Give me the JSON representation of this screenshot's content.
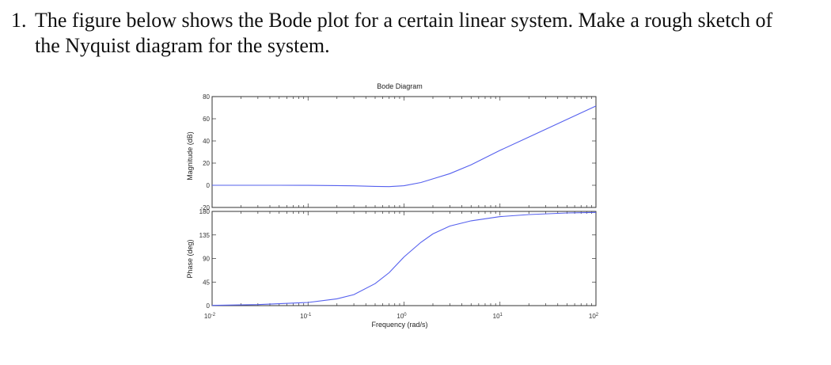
{
  "problem": {
    "number": "1.",
    "line1": "The figure below shows the Bode plot for a certain linear system. Make a rough sketch of",
    "line2": "the Nyquist diagram for the system."
  },
  "chart_data": [
    {
      "type": "line",
      "title": "Bode Diagram",
      "ylabel": "Magnitude (dB)",
      "xscale": "log",
      "xlim": [
        0.01,
        100
      ],
      "ylim": [
        -20,
        80
      ],
      "ytick_labels": [
        "-20",
        "0",
        "20",
        "40",
        "60",
        "80"
      ],
      "color": "#5560ee",
      "series": [
        {
          "x": [
            0.01,
            0.02,
            0.05,
            0.1,
            0.2,
            0.3,
            0.5,
            0.7,
            1,
            1.5,
            2,
            3,
            5,
            10,
            20,
            50,
            100
          ],
          "y": [
            0,
            0,
            0,
            -0.1,
            -0.3,
            -0.5,
            -1,
            -1.2,
            -0.4,
            2.5,
            5.8,
            10.5,
            18.5,
            31.5,
            43.5,
            59.5,
            71.5
          ]
        }
      ]
    },
    {
      "type": "line",
      "ylabel": "Phase (deg)",
      "xlabel": "Frequency  (rad/s)",
      "xscale": "log",
      "xlim": [
        0.01,
        100
      ],
      "ylim": [
        0,
        180
      ],
      "ytick_labels": [
        "0",
        "45",
        "90",
        "135",
        "180"
      ],
      "xtick_labels": [
        "10-2",
        "10-1",
        "100",
        "101",
        "102"
      ],
      "color": "#5560ee",
      "series": [
        {
          "x": [
            0.01,
            0.03,
            0.1,
            0.2,
            0.3,
            0.5,
            0.7,
            1,
            1.5,
            2,
            3,
            5,
            10,
            20,
            50,
            100
          ],
          "y": [
            0.5,
            2,
            6,
            13,
            21,
            42,
            63,
            93,
            121,
            137,
            152,
            162,
            170,
            174,
            177,
            178
          ]
        }
      ]
    }
  ]
}
